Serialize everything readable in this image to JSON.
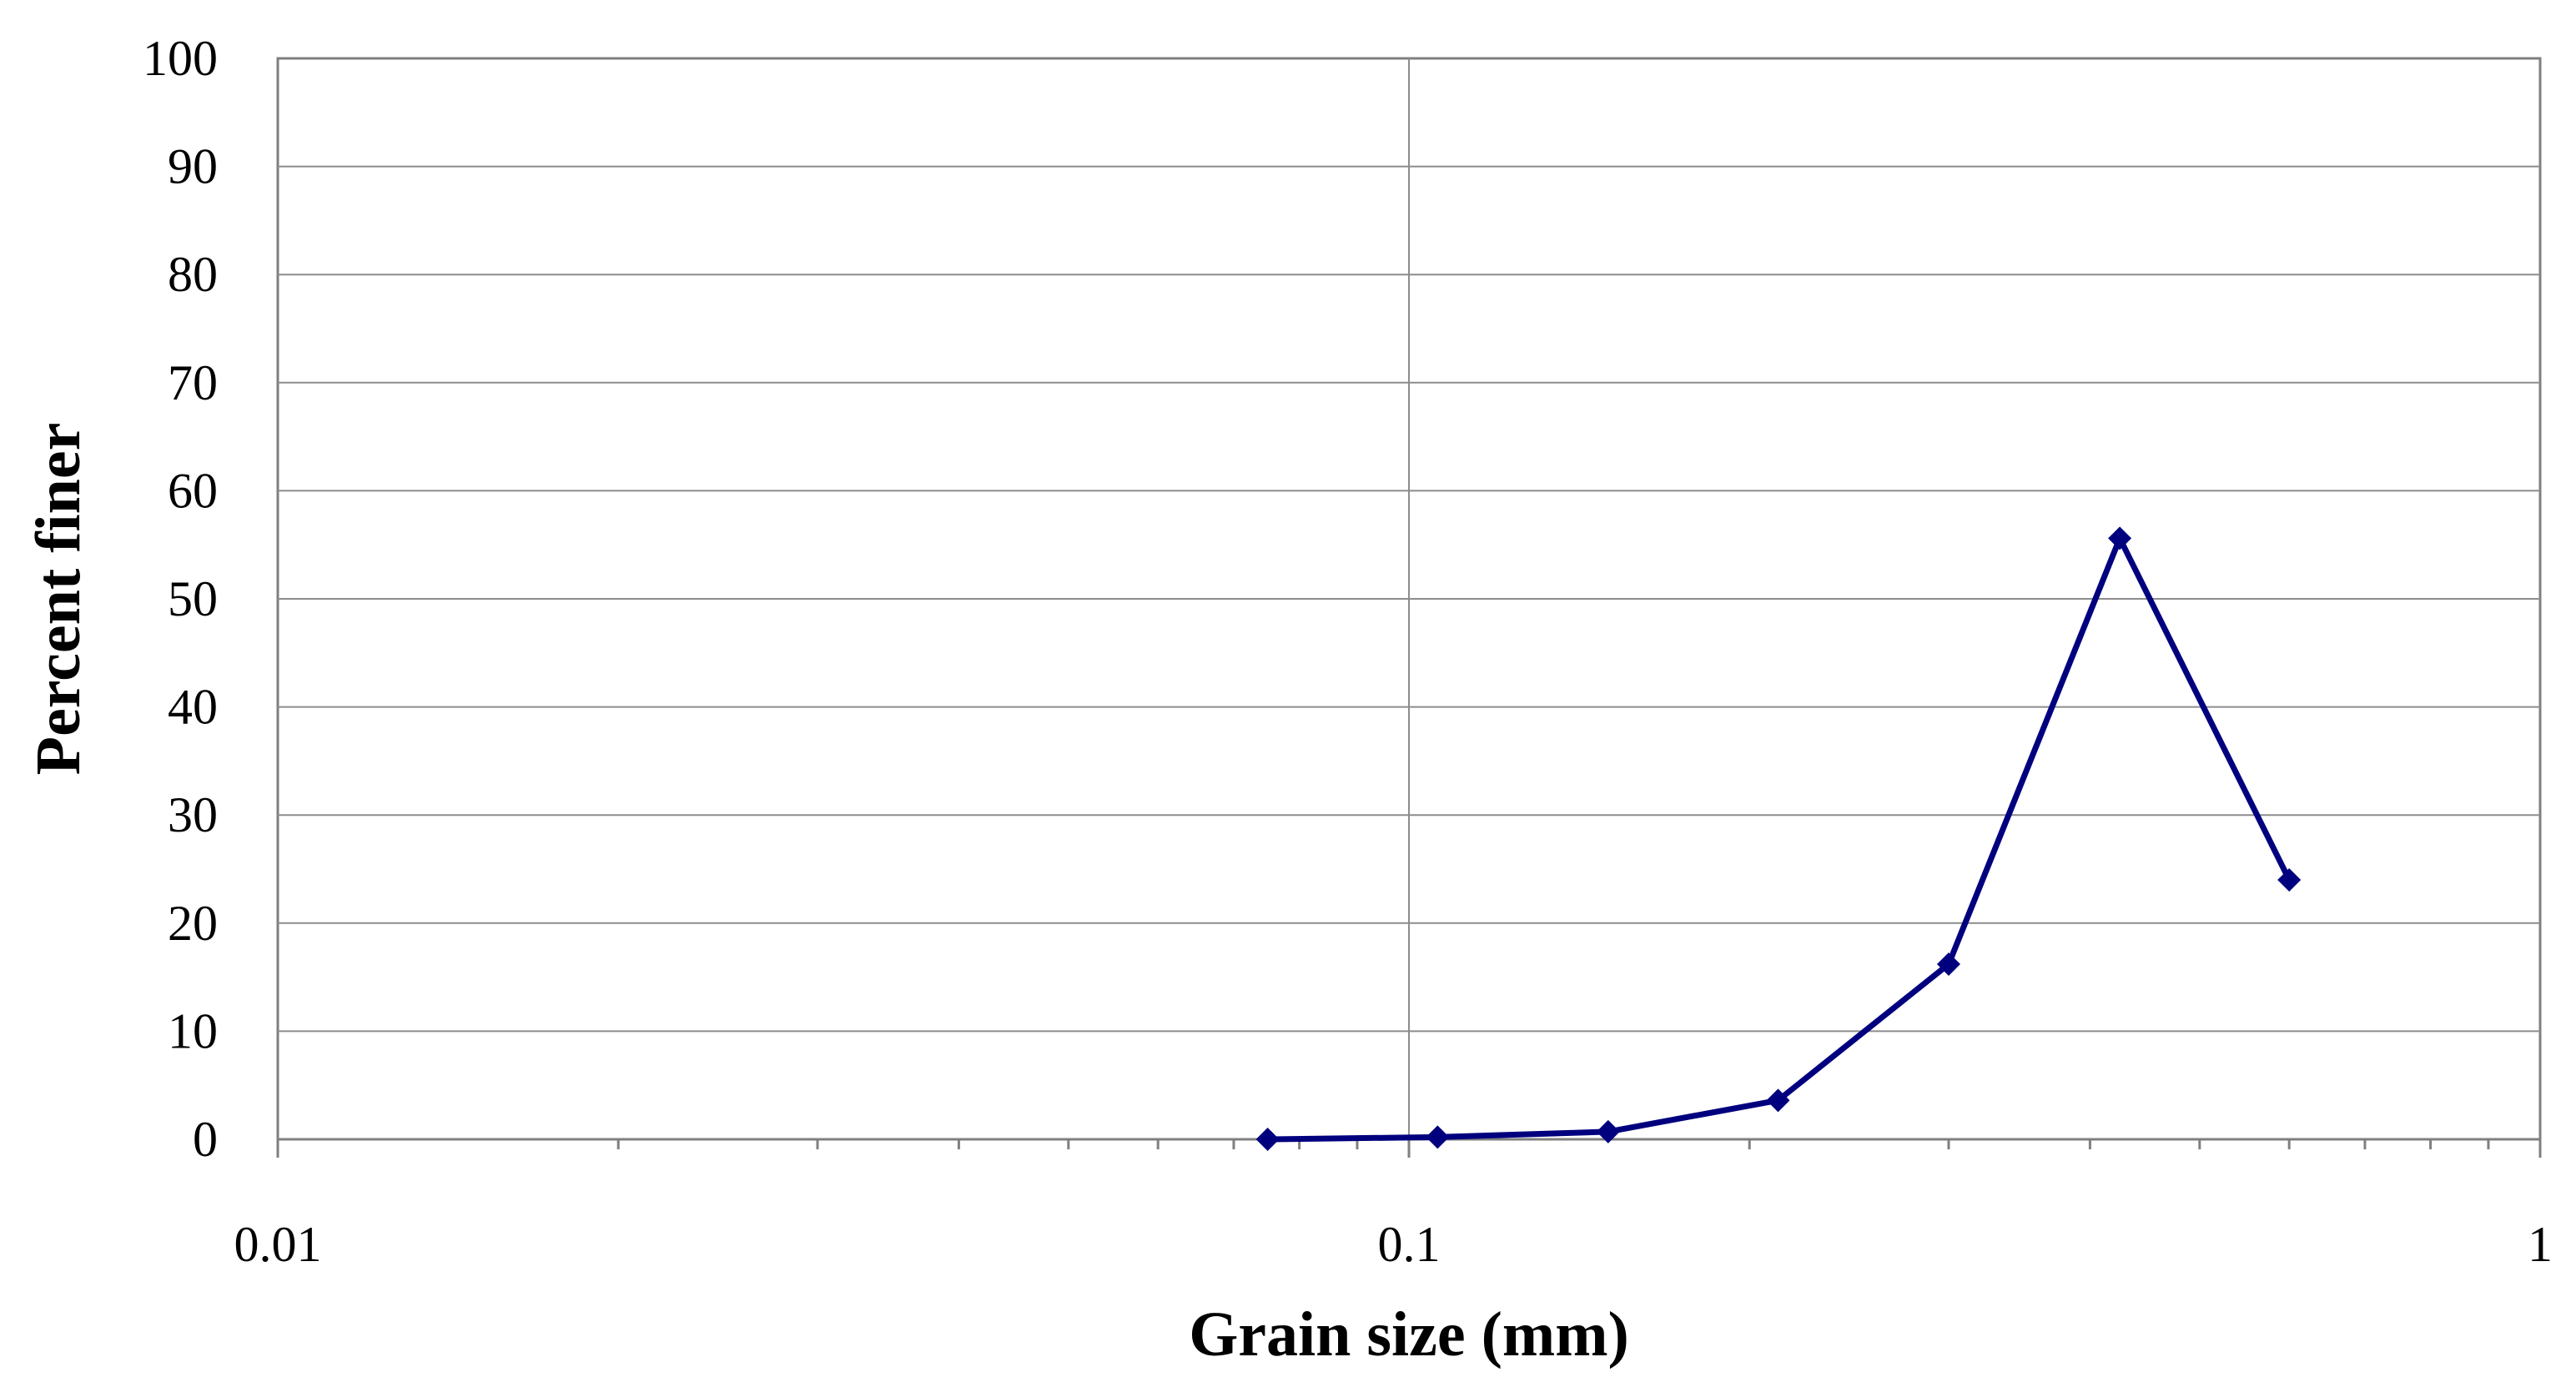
{
  "chart_data": {
    "type": "line",
    "xlabel": "Grain size (mm)",
    "ylabel": "Percent finer",
    "x_scale": "log",
    "xlim": [
      0.01,
      1
    ],
    "ylim": [
      0,
      100
    ],
    "x_ticks": [
      0.01,
      0.1,
      1
    ],
    "x_tick_labels": [
      "0.01",
      "0.1",
      "1"
    ],
    "y_ticks": [
      0,
      10,
      20,
      30,
      40,
      50,
      60,
      70,
      80,
      90,
      100
    ],
    "y_tick_labels": [
      "0",
      "10",
      "20",
      "30",
      "40",
      "50",
      "60",
      "70",
      "80",
      "90",
      "100"
    ],
    "grid": "horizontal major lines and vertical major lines",
    "legend": "none",
    "series": [
      {
        "color": "#00007f",
        "marker": "diamond",
        "x": [
          0.075,
          0.106,
          0.15,
          0.212,
          0.3,
          0.425,
          0.6
        ],
        "y": [
          0.0,
          0.2,
          0.7,
          3.6,
          16.2,
          55.6,
          24.0
        ]
      }
    ]
  }
}
